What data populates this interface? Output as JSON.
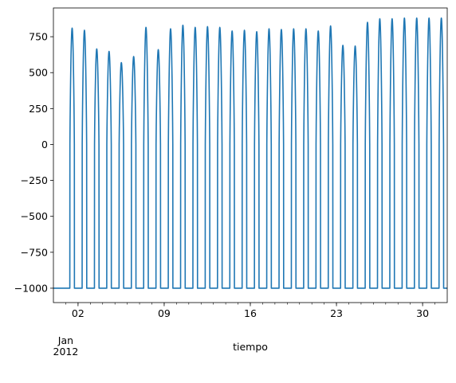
{
  "chart_data": {
    "type": "line",
    "xlabel": "tiempo",
    "ylabel": "",
    "title": "",
    "x_range": [
      "2011-12-31T00:00",
      "2012-02-01T00:00"
    ],
    "ylim": [
      -1100,
      950
    ],
    "y_ticks": [
      -1000,
      -750,
      -500,
      -250,
      0,
      250,
      500,
      750
    ],
    "x_major_ticks": [
      {
        "date": "2012-01-02",
        "label": "02"
      },
      {
        "date": "2012-01-09",
        "label": "09"
      },
      {
        "date": "2012-01-16",
        "label": "16"
      },
      {
        "date": "2012-01-23",
        "label": "23"
      },
      {
        "date": "2012-01-30",
        "label": "30"
      }
    ],
    "x_minor_tick_dates": [
      "2012-01-01",
      "2012-01-02",
      "2012-01-03",
      "2012-01-04",
      "2012-01-05",
      "2012-01-06",
      "2012-01-07",
      "2012-01-08",
      "2012-01-09",
      "2012-01-10",
      "2012-01-11",
      "2012-01-12",
      "2012-01-13",
      "2012-01-14",
      "2012-01-15",
      "2012-01-16",
      "2012-01-17",
      "2012-01-18",
      "2012-01-19",
      "2012-01-20",
      "2012-01-21",
      "2012-01-22",
      "2012-01-23",
      "2012-01-24",
      "2012-01-25",
      "2012-01-26",
      "2012-01-27",
      "2012-01-28",
      "2012-01-29",
      "2012-01-30",
      "2012-01-31"
    ],
    "x_offset_label": {
      "month": "Jan",
      "year": "2012"
    },
    "grid": false,
    "legend": "none",
    "line_color": "#1f77b4",
    "series": [
      {
        "night_value": -1000,
        "daily_peaks": [
          {
            "date": "2012-01-01",
            "peak": 810
          },
          {
            "date": "2012-01-02",
            "peak": 795
          },
          {
            "date": "2012-01-03",
            "peak": 665
          },
          {
            "date": "2012-01-04",
            "peak": 648
          },
          {
            "date": "2012-01-05",
            "peak": 570
          },
          {
            "date": "2012-01-06",
            "peak": 612
          },
          {
            "date": "2012-01-07",
            "peak": 815
          },
          {
            "date": "2012-01-08",
            "peak": 660
          },
          {
            "date": "2012-01-09",
            "peak": 805
          },
          {
            "date": "2012-01-10",
            "peak": 830
          },
          {
            "date": "2012-01-11",
            "peak": 815
          },
          {
            "date": "2012-01-12",
            "peak": 820
          },
          {
            "date": "2012-01-13",
            "peak": 815
          },
          {
            "date": "2012-01-14",
            "peak": 790
          },
          {
            "date": "2012-01-15",
            "peak": 795
          },
          {
            "date": "2012-01-16",
            "peak": 785
          },
          {
            "date": "2012-01-17",
            "peak": 805
          },
          {
            "date": "2012-01-18",
            "peak": 800
          },
          {
            "date": "2012-01-19",
            "peak": 805
          },
          {
            "date": "2012-01-20",
            "peak": 805
          },
          {
            "date": "2012-01-21",
            "peak": 790
          },
          {
            "date": "2012-01-22",
            "peak": 825
          },
          {
            "date": "2012-01-23",
            "peak": 690
          },
          {
            "date": "2012-01-24",
            "peak": 685
          },
          {
            "date": "2012-01-25",
            "peak": 850
          },
          {
            "date": "2012-01-26",
            "peak": 875
          },
          {
            "date": "2012-01-27",
            "peak": 875
          },
          {
            "date": "2012-01-28",
            "peak": 880
          },
          {
            "date": "2012-01-29",
            "peak": 880
          },
          {
            "date": "2012-01-30",
            "peak": 880
          },
          {
            "date": "2012-01-31",
            "peak": 880
          }
        ]
      }
    ]
  }
}
